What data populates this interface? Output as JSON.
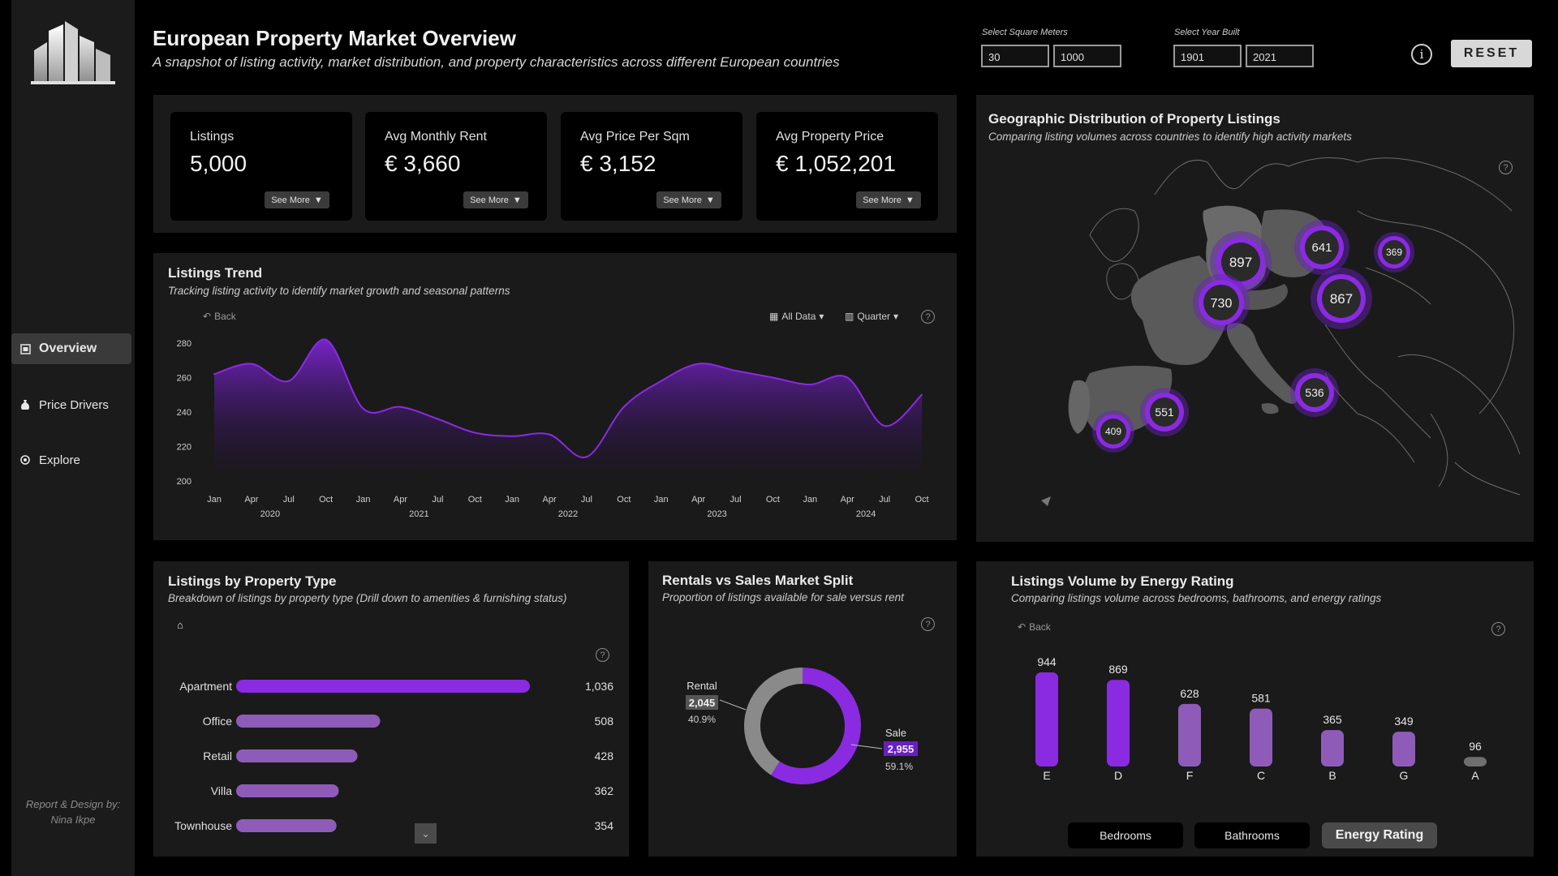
{
  "header": {
    "title": "European Property Market Overview",
    "subtitle": "A snapshot of listing activity, market distribution, and property characteristics across different European countries"
  },
  "filters": {
    "sqm": {
      "label": "Select Square Meters",
      "min": "30",
      "max": "1000"
    },
    "year": {
      "label": "Select Year Built",
      "min": "1901",
      "max": "2021"
    },
    "info_icon": "i",
    "reset_label": "RESET"
  },
  "sidebar": {
    "items": [
      {
        "label": "Overview",
        "icon": "page-icon",
        "active": true
      },
      {
        "label": "Price Drivers",
        "icon": "money-bag-icon"
      },
      {
        "label": "Explore",
        "icon": "target-icon"
      }
    ],
    "credit_line1": "Report & Design by:",
    "credit_line2": "Nina Ikpe"
  },
  "kpis": [
    {
      "label": "Listings",
      "value": "5,000",
      "button": "See More"
    },
    {
      "label": "Avg Monthly Rent",
      "value": "€ 3,660",
      "button": "See More"
    },
    {
      "label": "Avg Price Per Sqm",
      "value": "€ 3,152",
      "button": "See More"
    },
    {
      "label": "Avg Property Price",
      "value": "€ 1,052,201",
      "button": "See More"
    }
  ],
  "trend": {
    "title": "Listings Trend",
    "subtitle": "Tracking listing activity to identify market growth and seasonal patterns",
    "back": "Back",
    "all_data": "All Data",
    "quarter": "Quarter"
  },
  "map": {
    "title": "Geographic Distribution of Property Listings",
    "subtitle": "Comparing listing volumes across countries to identify high activity markets",
    "bubbles": [
      {
        "label": "897"
      },
      {
        "label": "641"
      },
      {
        "label": "369"
      },
      {
        "label": "730"
      },
      {
        "label": "867"
      },
      {
        "label": "536"
      },
      {
        "label": "551"
      },
      {
        "label": "409"
      }
    ]
  },
  "property_type": {
    "title": "Listings by Property Type",
    "subtitle": "Breakdown of listings by property type (Drill down to amenities & furnishing status)"
  },
  "split": {
    "title": "Rentals vs Sales Market Split",
    "subtitle": "Proportion of listings available for sale versus rent"
  },
  "energy": {
    "title": "Listings Volume by Energy Rating",
    "subtitle": "Comparing listings volume across bedrooms, bathrooms, and energy ratings",
    "back": "Back",
    "tabs": [
      {
        "label": "Bedrooms",
        "active": false
      },
      {
        "label": "Bathrooms",
        "active": false
      },
      {
        "label": "Energy Rating",
        "active": true
      }
    ]
  },
  "colors": {
    "accent": "#8a2be2",
    "accent_light": "#8e5cb8",
    "grey": "#8a8a8a"
  },
  "chart_data": [
    {
      "type": "area",
      "x": [
        "Jan 2020",
        "Apr 2020",
        "Jul 2020",
        "Oct 2020",
        "Jan 2021",
        "Apr 2021",
        "Jul 2021",
        "Oct 2021",
        "Jan 2022",
        "Apr 2022",
        "Jul 2022",
        "Oct 2022",
        "Jan 2023",
        "Apr 2023",
        "Jul 2023",
        "Oct 2023",
        "Jan 2024",
        "Apr 2024",
        "Jul 2024",
        "Oct 2024"
      ],
      "x_ticks": [
        "Jan",
        "Apr",
        "Jul",
        "Oct",
        "Jan",
        "Apr",
        "Jul",
        "Oct",
        "Jan",
        "Apr",
        "Jul",
        "Oct",
        "Jan",
        "Apr",
        "Jul",
        "Oct",
        "Jan",
        "Apr",
        "Jul",
        "Oct"
      ],
      "year_labels": [
        "2020",
        "2021",
        "2022",
        "2023",
        "2024"
      ],
      "values": [
        262,
        268,
        258,
        282,
        242,
        243,
        236,
        228,
        226,
        227,
        214,
        243,
        258,
        268,
        264,
        260,
        256,
        260,
        232,
        250
      ],
      "ylim": [
        200,
        280
      ],
      "yticks": [
        200,
        220,
        240,
        260,
        280
      ]
    },
    {
      "type": "bar",
      "orientation": "horizontal",
      "categories": [
        "Apartment",
        "Office",
        "Retail",
        "Villa",
        "Townhouse"
      ],
      "values": [
        1036,
        508,
        428,
        362,
        354
      ],
      "labels": [
        "1,036",
        "508",
        "428",
        "362",
        "354"
      ]
    },
    {
      "type": "pie",
      "donut": true,
      "categories": [
        "Rental",
        "Sale"
      ],
      "values": [
        2045,
        2955
      ],
      "labels": [
        "2,045",
        "2,955"
      ],
      "percents": [
        "40.9%",
        "59.1%"
      ]
    },
    {
      "type": "bar",
      "categories": [
        "E",
        "D",
        "F",
        "C",
        "B",
        "G",
        "A"
      ],
      "values": [
        944,
        869,
        628,
        581,
        365,
        349,
        96
      ]
    }
  ]
}
